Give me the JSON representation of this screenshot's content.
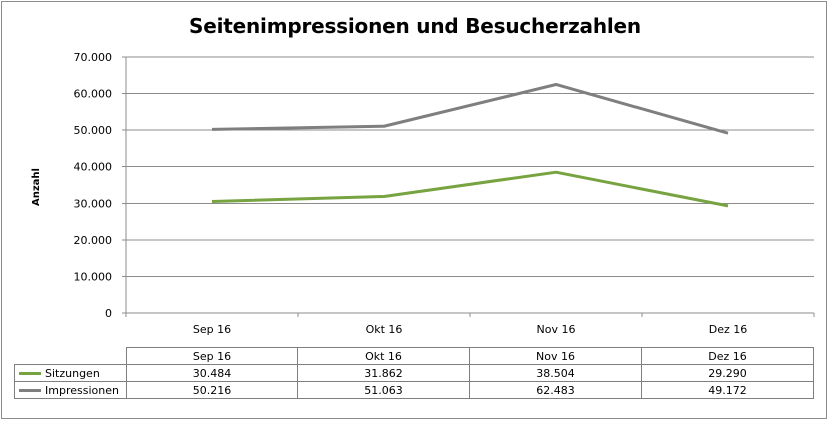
{
  "chart_data": {
    "type": "line",
    "title": "Seitenimpressionen und Besucherzahlen",
    "ylabel": "Anzahl",
    "xlabel": "",
    "categories": [
      "Sep 16",
      "Okt 16",
      "Nov 16",
      "Dez 16"
    ],
    "ylim": [
      0,
      70000
    ],
    "yticks": [
      0,
      10000,
      20000,
      30000,
      40000,
      50000,
      60000,
      70000
    ],
    "ytick_labels": [
      "0",
      "10.000",
      "20.000",
      "30.000",
      "40.000",
      "50.000",
      "60.000",
      "70.000"
    ],
    "grid": true,
    "series": [
      {
        "name": "Sitzungen",
        "color": "#77a340",
        "values": [
          30484,
          31862,
          38504,
          29290
        ],
        "labels": [
          "30.484",
          "31.862",
          "38.504",
          "29.290"
        ]
      },
      {
        "name": "Impressionen",
        "color": "#7f7f7f",
        "values": [
          50216,
          51063,
          62483,
          49172
        ],
        "labels": [
          "50.216",
          "51.063",
          "62.483",
          "49.172"
        ]
      }
    ],
    "data_table": true
  }
}
